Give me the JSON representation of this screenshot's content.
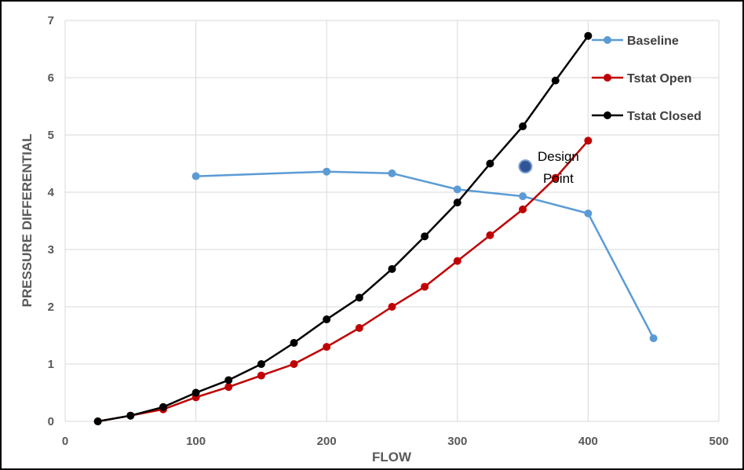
{
  "chart_data": {
    "type": "line",
    "xlabel": "FLOW",
    "ylabel": "PRESSURE DIFFERENTIAL",
    "xlim": [
      0,
      500
    ],
    "ylim": [
      0,
      7
    ],
    "x_ticks": [
      "0",
      "100",
      "200",
      "300",
      "400",
      "500"
    ],
    "y_ticks": [
      "0",
      "1",
      "2",
      "3",
      "4",
      "5",
      "6",
      "7"
    ],
    "grid": true,
    "legend_position": "top-right",
    "series": [
      {
        "name": "Baseline",
        "color": "#5b9bd5",
        "points": [
          [
            100,
            4.28
          ],
          [
            200,
            4.36
          ],
          [
            250,
            4.33
          ],
          [
            300,
            4.05
          ],
          [
            350,
            3.93
          ],
          [
            400,
            3.63
          ],
          [
            450,
            1.45
          ]
        ]
      },
      {
        "name": "Tstat Open",
        "color": "#c00000",
        "points": [
          [
            25,
            0
          ],
          [
            50,
            0.1
          ],
          [
            75,
            0.21
          ],
          [
            100,
            0.42
          ],
          [
            125,
            0.6
          ],
          [
            150,
            0.8
          ],
          [
            175,
            1.0
          ],
          [
            200,
            1.3
          ],
          [
            225,
            1.63
          ],
          [
            250,
            2.0
          ],
          [
            275,
            2.35
          ],
          [
            300,
            2.8
          ],
          [
            325,
            3.25
          ],
          [
            350,
            3.7
          ],
          [
            375,
            4.25
          ],
          [
            400,
            4.9
          ]
        ]
      },
      {
        "name": "Tstat Closed",
        "color": "#000000",
        "points": [
          [
            25,
            0
          ],
          [
            50,
            0.1
          ],
          [
            75,
            0.25
          ],
          [
            100,
            0.5
          ],
          [
            125,
            0.72
          ],
          [
            150,
            1.0
          ],
          [
            175,
            1.37
          ],
          [
            200,
            1.78
          ],
          [
            225,
            2.16
          ],
          [
            250,
            2.66
          ],
          [
            275,
            3.23
          ],
          [
            300,
            3.82
          ],
          [
            325,
            4.5
          ],
          [
            350,
            5.15
          ],
          [
            375,
            5.95
          ],
          [
            400,
            6.73
          ]
        ]
      }
    ],
    "annotations": [
      {
        "label_line1": "Design",
        "label_line2": "Point",
        "x": 352,
        "y": 4.45,
        "color": "#2f5597"
      }
    ]
  }
}
